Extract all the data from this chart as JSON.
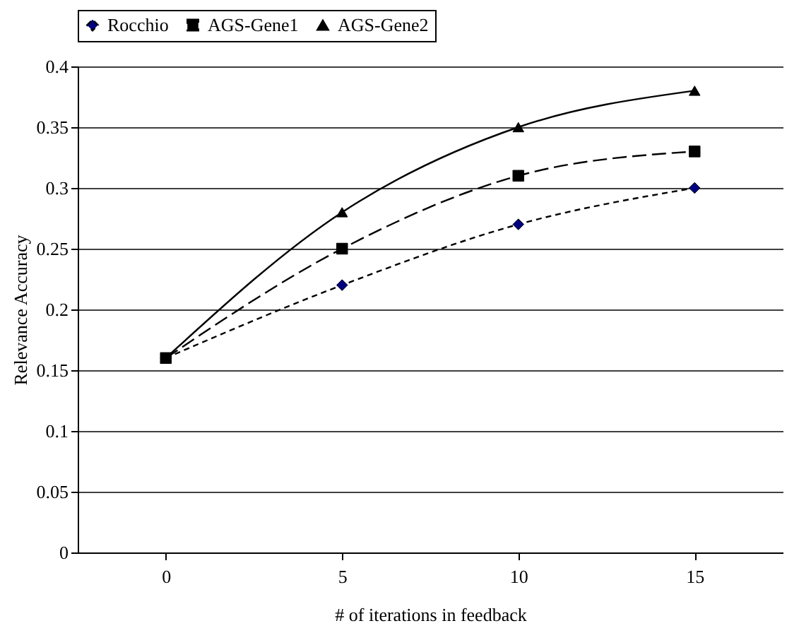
{
  "chart_data": {
    "type": "line",
    "xlabel": "# of iterations in feedback",
    "ylabel": "Relevance Accuracy",
    "categories": [
      "0",
      "5",
      "10",
      "15"
    ],
    "series": [
      {
        "name": "Rocchio",
        "color": "#000080",
        "values": [
          0.16,
          0.22,
          0.27,
          0.3
        ],
        "marker": "diamond",
        "line_style": "dotted"
      },
      {
        "name": "AGS-Gene1",
        "color": "#000000",
        "values": [
          0.16,
          0.25,
          0.31,
          0.33
        ],
        "marker": "square",
        "line_style": "dashed"
      },
      {
        "name": "AGS-Gene2",
        "color": "#000000",
        "values": [
          0.16,
          0.28,
          0.35,
          0.38
        ],
        "marker": "triangle",
        "line_style": "solid"
      }
    ],
    "ylim": [
      0,
      0.4
    ],
    "yticks": [
      0,
      0.05,
      0.1,
      0.15,
      0.2,
      0.25,
      0.3,
      0.35,
      0.4
    ],
    "grid": "y",
    "legend": "top"
  }
}
